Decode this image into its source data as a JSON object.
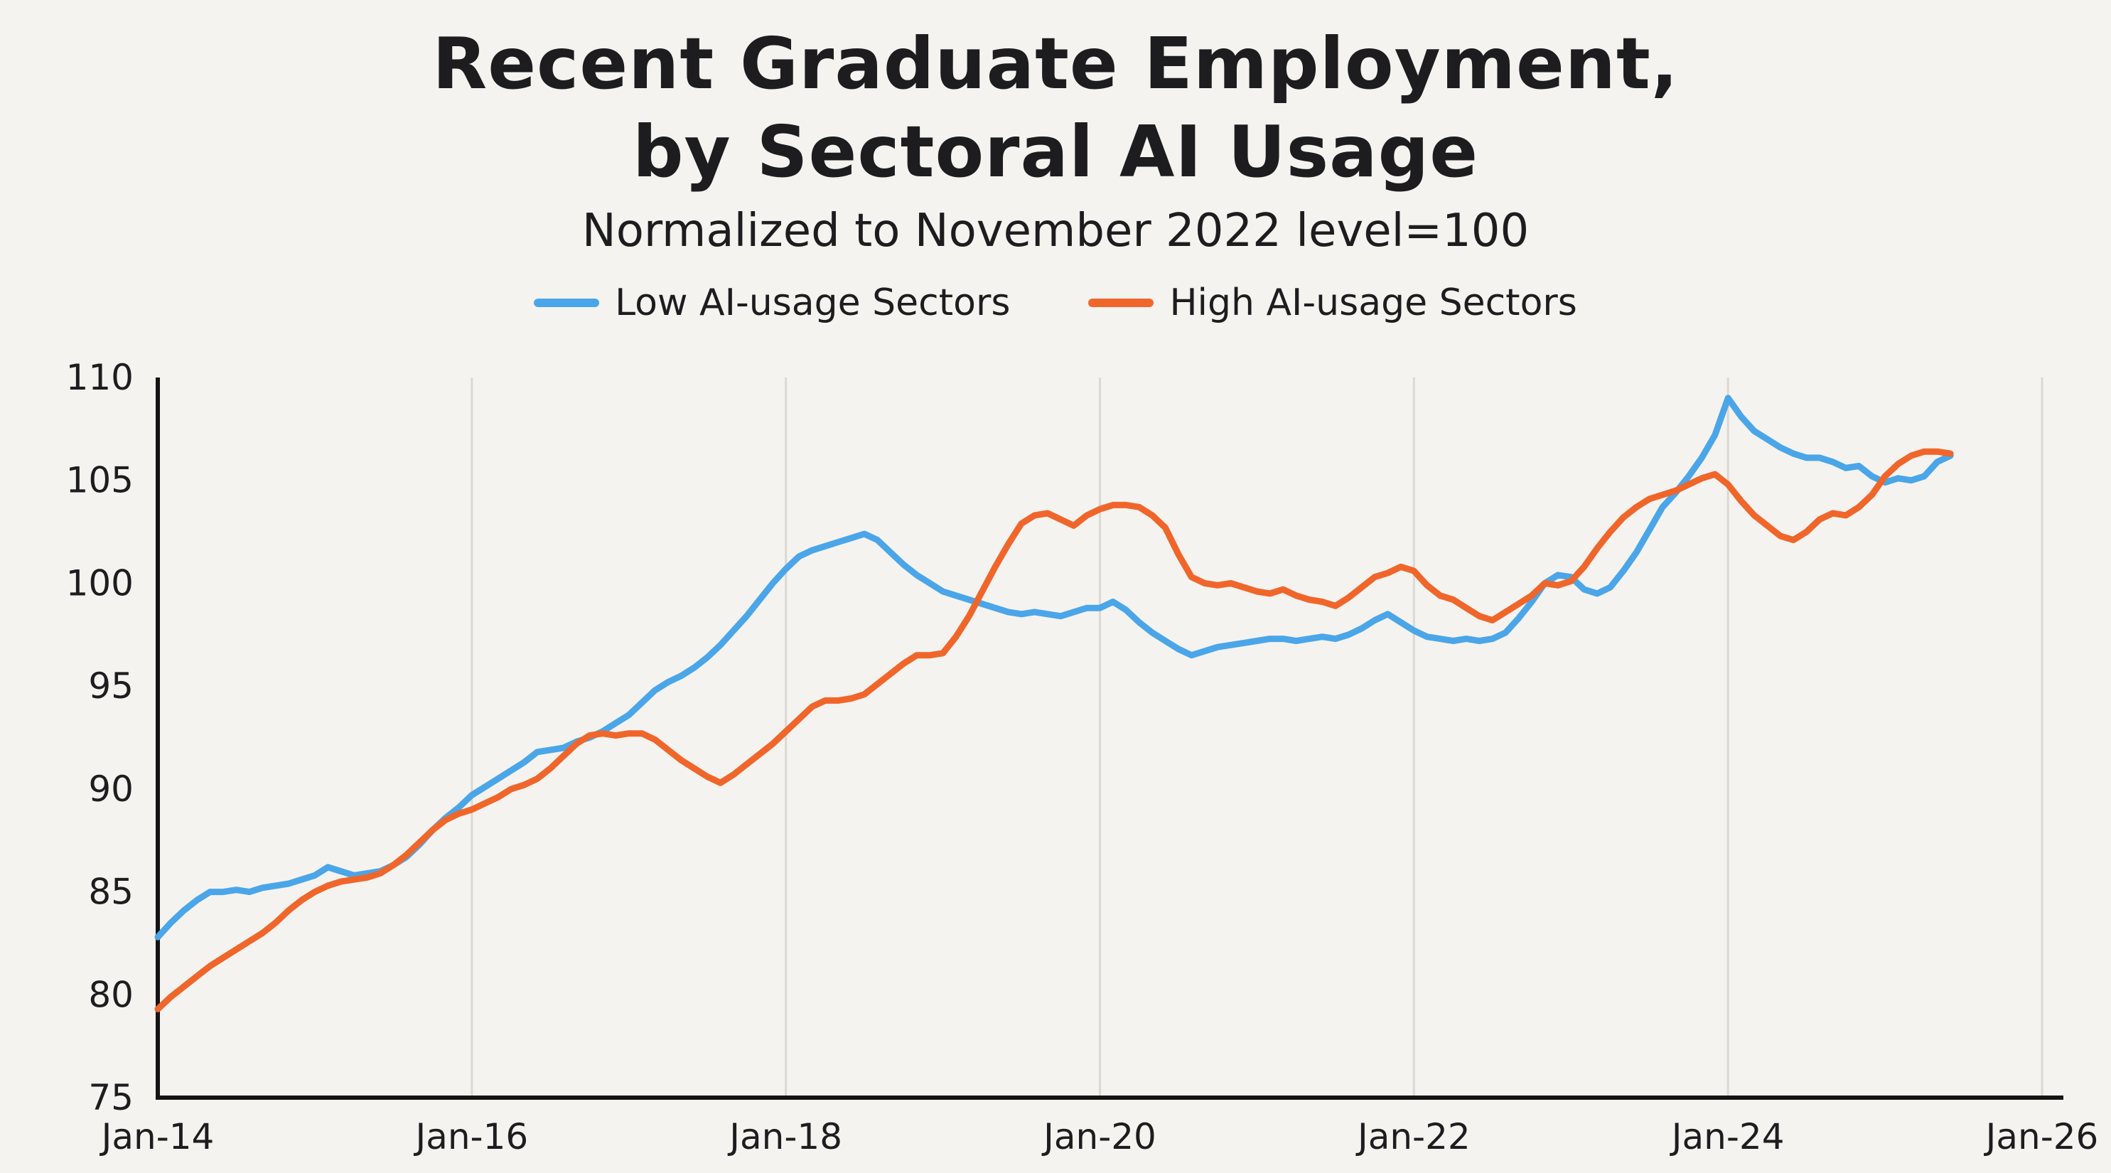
{
  "page": {
    "background": "#f5f3f0"
  },
  "header": {
    "title_line1": "Recent Graduate Employment,",
    "title_line2": "by Sectoral AI Usage",
    "subtitle": "Normalized to November 2022 level=100"
  },
  "legend": [
    {
      "label": "Low AI-usage Sectors",
      "color": "#4aa6e8"
    },
    {
      "label": "High AI-usage Sectors",
      "color": "#f0662a"
    }
  ],
  "colors": {
    "grid": "#dcd9d4",
    "axis": "#141414",
    "tick_text": "#1d1d1f",
    "low_ai": "#4aa6e8",
    "high_ai": "#f0662a"
  },
  "chart_data": {
    "type": "line",
    "title": "Recent Graduate Employment, by Sectoral AI Usage",
    "subtitle": "Normalized to November 2022 level=100",
    "xlabel": "",
    "ylabel": "",
    "x_start": "2014-01",
    "frequency": "monthly",
    "xlim_years": [
      2014,
      2026
    ],
    "ylim": [
      75,
      110
    ],
    "y_ticks": [
      75,
      80,
      85,
      90,
      95,
      100,
      105,
      110
    ],
    "x_tick_years": [
      2014,
      2016,
      2018,
      2020,
      2022,
      2024,
      2026
    ],
    "x_tick_labels": [
      "Jan-14",
      "Jan-16",
      "Jan-18",
      "Jan-20",
      "Jan-22",
      "Jan-24",
      "Jan-26"
    ],
    "grid": "vertical-only",
    "legend_position": "top-center",
    "series": [
      {
        "name": "Low AI-usage Sectors",
        "color": "#4aa6e8",
        "values": [
          82.8,
          83.5,
          84.1,
          84.6,
          85.0,
          85.0,
          85.1,
          85.0,
          85.2,
          85.3,
          85.4,
          85.6,
          85.8,
          86.2,
          86.0,
          85.8,
          85.9,
          86.0,
          86.3,
          86.7,
          87.3,
          88.0,
          88.6,
          89.1,
          89.7,
          90.1,
          90.5,
          90.9,
          91.3,
          91.8,
          91.9,
          92.0,
          92.3,
          92.5,
          92.8,
          93.2,
          93.6,
          94.2,
          94.8,
          95.2,
          95.5,
          95.9,
          96.4,
          97.0,
          97.7,
          98.4,
          99.2,
          100.0,
          100.7,
          101.3,
          101.6,
          101.8,
          102.0,
          102.2,
          102.4,
          102.1,
          101.5,
          100.9,
          100.4,
          100.0,
          99.6,
          99.4,
          99.2,
          99.0,
          98.8,
          98.6,
          98.5,
          98.6,
          98.5,
          98.4,
          98.6,
          98.8,
          98.8,
          99.1,
          98.7,
          98.1,
          97.6,
          97.2,
          96.8,
          96.5,
          96.7,
          96.9,
          97.0,
          97.1,
          97.2,
          97.3,
          97.3,
          97.2,
          97.3,
          97.4,
          97.3,
          97.5,
          97.8,
          98.2,
          98.5,
          98.1,
          97.7,
          97.4,
          97.3,
          97.2,
          97.3,
          97.2,
          97.3,
          97.6,
          98.3,
          99.1,
          100.0,
          100.4,
          100.3,
          99.7,
          99.5,
          99.8,
          100.6,
          101.5,
          102.6,
          103.7,
          104.4,
          105.2,
          106.1,
          107.2,
          109.0,
          108.1,
          107.4,
          107.0,
          106.6,
          106.3,
          106.1,
          106.1,
          105.9,
          105.6,
          105.7,
          105.2,
          104.9,
          105.1,
          105.0,
          105.2,
          105.9,
          106.2
        ]
      },
      {
        "name": "High AI-usage Sectors",
        "color": "#f0662a",
        "values": [
          79.3,
          79.9,
          80.4,
          80.9,
          81.4,
          81.8,
          82.2,
          82.6,
          83.0,
          83.5,
          84.1,
          84.6,
          85.0,
          85.3,
          85.5,
          85.6,
          85.7,
          85.9,
          86.3,
          86.8,
          87.4,
          88.0,
          88.5,
          88.8,
          89.0,
          89.3,
          89.6,
          90.0,
          90.2,
          90.5,
          91.0,
          91.6,
          92.2,
          92.6,
          92.7,
          92.6,
          92.7,
          92.7,
          92.4,
          91.9,
          91.4,
          91.0,
          90.6,
          90.3,
          90.7,
          91.2,
          91.7,
          92.2,
          92.8,
          93.4,
          94.0,
          94.3,
          94.3,
          94.4,
          94.6,
          95.1,
          95.6,
          96.1,
          96.5,
          96.5,
          96.6,
          97.4,
          98.4,
          99.6,
          100.8,
          101.9,
          102.9,
          103.3,
          103.4,
          103.1,
          102.8,
          103.3,
          103.6,
          103.8,
          103.8,
          103.7,
          103.3,
          102.7,
          101.4,
          100.3,
          100.0,
          99.9,
          100.0,
          99.8,
          99.6,
          99.5,
          99.7,
          99.4,
          99.2,
          99.1,
          98.9,
          99.3,
          99.8,
          100.3,
          100.5,
          100.8,
          100.6,
          99.9,
          99.4,
          99.2,
          98.8,
          98.4,
          98.2,
          98.6,
          99.0,
          99.4,
          100.0,
          99.9,
          100.1,
          100.8,
          101.7,
          102.5,
          103.2,
          103.7,
          104.1,
          104.3,
          104.5,
          104.8,
          105.1,
          105.3,
          104.8,
          104.0,
          103.3,
          102.8,
          102.3,
          102.1,
          102.5,
          103.1,
          103.4,
          103.3,
          103.7,
          104.3,
          105.2,
          105.8,
          106.2,
          106.4,
          106.4,
          106.3
        ]
      }
    ]
  }
}
